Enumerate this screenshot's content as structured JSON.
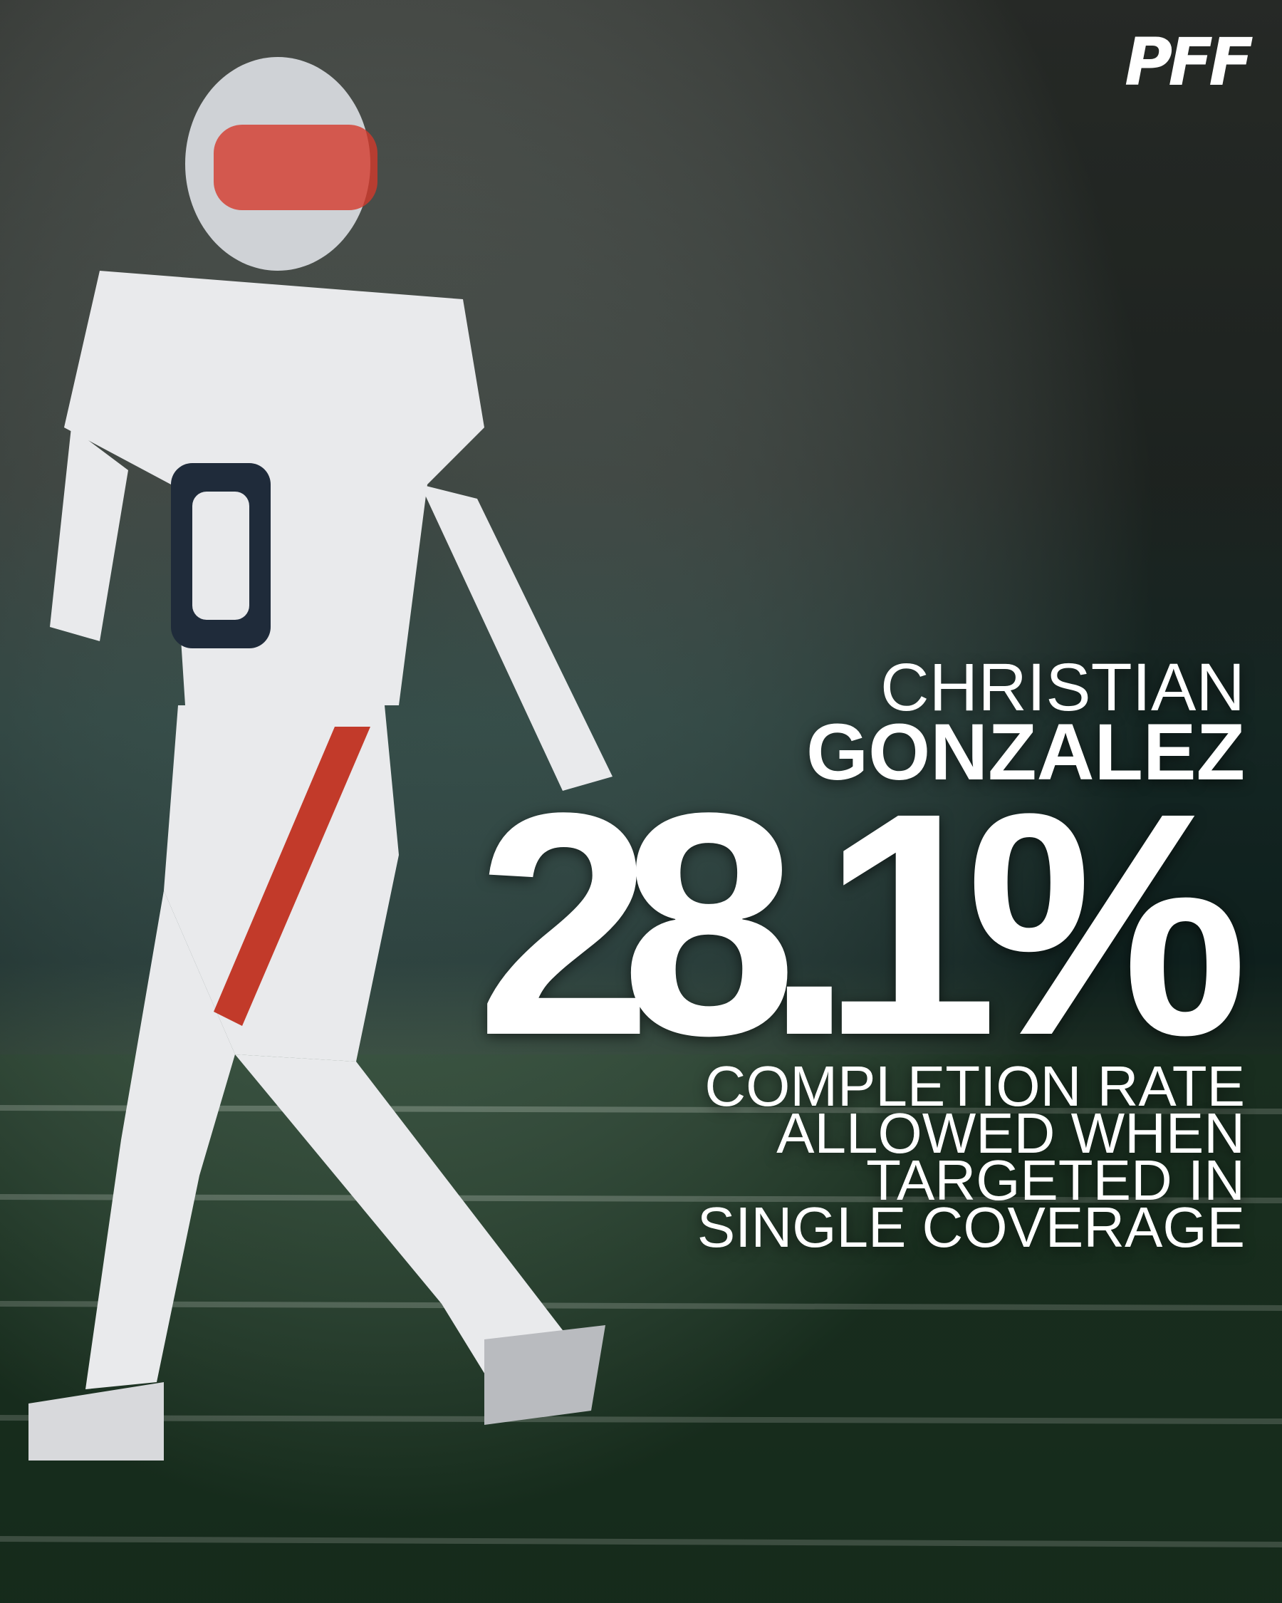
{
  "logo": "PFF",
  "player": {
    "first_name": "CHRISTIAN",
    "last_name": "GONZALEZ"
  },
  "stat": {
    "value": "28.1%",
    "description": [
      "COMPLETION RATE",
      "ALLOWED WHEN",
      "TARGETED IN",
      "SINGLE COVERAGE"
    ]
  }
}
